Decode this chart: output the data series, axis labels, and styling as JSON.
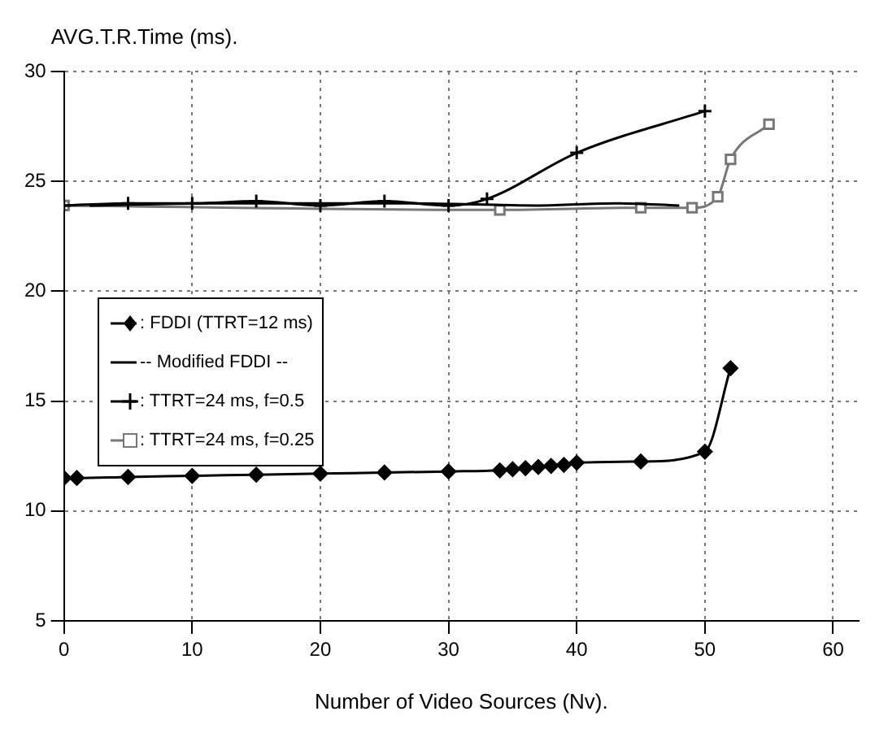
{
  "chart_data": {
    "type": "line",
    "ylabel": "AVG.T.R.Time (ms).",
    "xlabel": "Number of Video Sources (Nv).",
    "xlim": [
      0,
      62
    ],
    "xticks": [
      0,
      10,
      20,
      30,
      40,
      50,
      60
    ],
    "ylim": [
      5,
      30
    ],
    "yticks": [
      5,
      10,
      15,
      20,
      25,
      30
    ],
    "grid": true,
    "legend": "left",
    "line_style": "solid",
    "series": [
      {
        "name": ": FDDI  (TTRT=12 ms)",
        "color": "#000000",
        "marker": "diamond",
        "x": [
          0,
          1,
          5,
          10,
          15,
          20,
          25,
          30,
          34,
          35,
          36,
          37,
          38,
          39,
          40,
          45,
          50,
          52
        ],
        "values": [
          11.5,
          11.5,
          11.55,
          11.6,
          11.65,
          11.7,
          11.75,
          11.8,
          11.85,
          11.9,
          11.95,
          12.0,
          12.05,
          12.1,
          12.2,
          12.25,
          12.7,
          16.5
        ]
      },
      {
        "name": "-- Modified FDDI --",
        "color": "#000000",
        "marker": "none",
        "x": [
          2,
          12,
          27,
          37,
          43,
          48
        ],
        "values": [
          23.9,
          24.0,
          24.0,
          23.9,
          24.0,
          23.9
        ]
      },
      {
        "name": ": TTRT=24 ms, f=0.5",
        "color": "#000000",
        "marker": "cross",
        "x": [
          0,
          5,
          10,
          15,
          20,
          25,
          30,
          33,
          40,
          50
        ],
        "values": [
          23.9,
          24.0,
          24.0,
          24.1,
          23.9,
          24.1,
          23.9,
          24.2,
          26.3,
          28.2
        ]
      },
      {
        "name": ": TTRT=24 ms, f=0.25",
        "color": "#777777",
        "marker": "square",
        "x": [
          0,
          34,
          45,
          49,
          51,
          52,
          55
        ],
        "values": [
          23.9,
          23.7,
          23.8,
          23.8,
          24.3,
          26.0,
          27.6
        ]
      }
    ]
  }
}
